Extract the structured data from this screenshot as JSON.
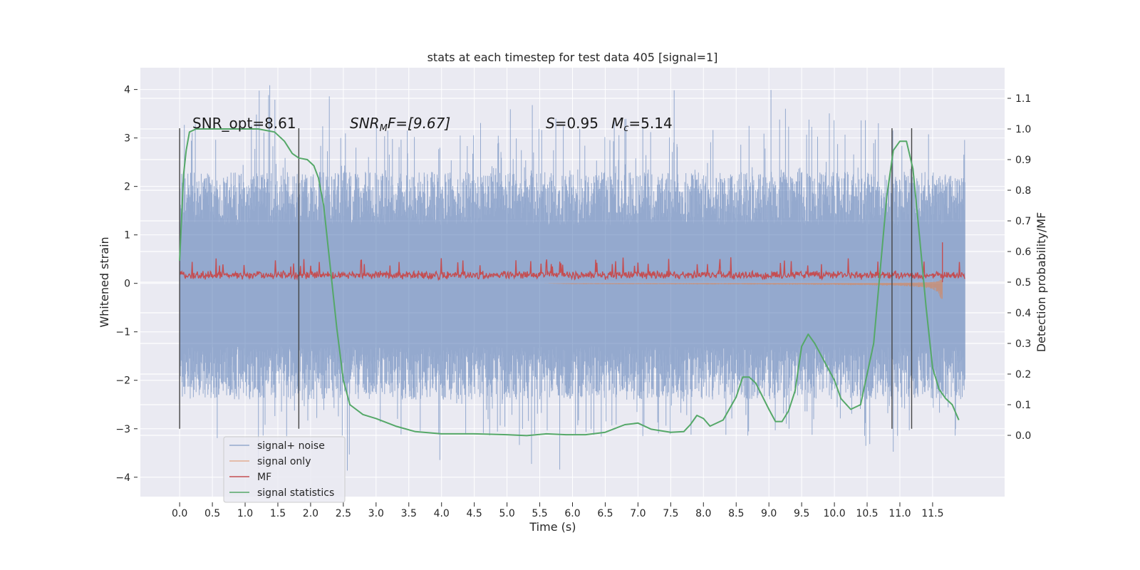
{
  "chart_data": {
    "type": "line",
    "title": "stats at each timestep for test data 405 [signal=1]",
    "xlabel": "Time (s)",
    "ylabel": "Whitened strain",
    "ylabel_right": "Detection probability/MF",
    "xlim": [
      -0.6,
      12.6
    ],
    "ylim": [
      -4.4,
      4.45
    ],
    "ylim_right": [
      -0.2,
      1.2
    ],
    "x_ticks": [
      0.0,
      0.5,
      1.0,
      1.5,
      2.0,
      2.5,
      3.0,
      3.5,
      4.0,
      4.5,
      5.0,
      5.5,
      6.0,
      6.5,
      7.0,
      7.5,
      8.0,
      8.5,
      9.0,
      9.5,
      10.0,
      10.5,
      11.0,
      11.5
    ],
    "x_tick_labels": [
      "0.0",
      "0.5",
      "1.0",
      "1.5",
      "2.0",
      "2.5",
      "3.0",
      "3.5",
      "4.0",
      "4.5",
      "5.0",
      "5.5",
      "6.0",
      "6.5",
      "7.0",
      "7.5",
      "8.0",
      "8.5",
      "9.0",
      "9.5",
      "10.0",
      "10.5",
      "11.0",
      "11.5"
    ],
    "y_ticks": [
      -4,
      -3,
      -2,
      -1,
      0,
      1,
      2,
      3,
      4
    ],
    "y_tick_labels": [
      "−4",
      "−3",
      "−2",
      "−1",
      "0",
      "1",
      "2",
      "3",
      "4"
    ],
    "y_ticks_right": [
      0.0,
      0.1,
      0.2,
      0.3,
      0.4,
      0.5,
      0.6,
      0.7,
      0.8,
      0.9,
      1.0,
      1.1
    ],
    "y_tick_labels_right": [
      "0.0",
      "0.1",
      "0.2",
      "0.3",
      "0.4",
      "0.5",
      "0.6",
      "0.7",
      "0.8",
      "0.9",
      "1.0",
      "1.1"
    ],
    "grid": true,
    "legend_position": "lower-left",
    "annotations": {
      "snr_opt": "SNR_opt=8.61",
      "snr_mf_label": "SNR",
      "snr_mf_sub": "M",
      "snr_mf_rest": "F=[9.67]",
      "s_label": "S",
      "s_value": "=0.95",
      "mc_label": "M",
      "mc_sub": "c",
      "mc_value": "=5.14"
    },
    "vertical_lines": [
      0.0,
      1.82,
      10.88,
      11.18
    ],
    "vertical_line_range": [
      -3.0,
      3.2
    ],
    "series": [
      {
        "name": "signal+ noise",
        "color": "#4c72b0",
        "style": "noise",
        "x_range": [
          0.0,
          12.0
        ],
        "envelope_inner": 1.35,
        "envelope_outer": 2.2,
        "max_peak": 4.1,
        "min_peak": -3.9
      },
      {
        "name": "signal only",
        "color": "#dd8452",
        "style": "chirp",
        "x_range": [
          0.0,
          11.65
        ],
        "max_amplitude": 0.65
      },
      {
        "name": "MF",
        "color": "#c44e52",
        "style": "mf",
        "x_range": [
          0.0,
          12.0
        ],
        "baseline": 0.5,
        "spike_x": 11.65,
        "spike_value": 0.63
      },
      {
        "name": "signal statistics",
        "color": "#55a868",
        "style": "line",
        "axis": "right",
        "x": [
          0.0,
          0.06,
          0.1,
          0.15,
          0.25,
          0.4,
          0.6,
          0.8,
          1.0,
          1.2,
          1.45,
          1.6,
          1.72,
          1.82,
          1.95,
          2.05,
          2.12,
          2.2,
          2.3,
          2.4,
          2.5,
          2.6,
          2.8,
          3.0,
          3.3,
          3.6,
          4.0,
          4.5,
          5.0,
          5.3,
          5.6,
          5.9,
          6.2,
          6.5,
          6.8,
          7.0,
          7.2,
          7.5,
          7.7,
          7.8,
          7.9,
          8.0,
          8.1,
          8.3,
          8.5,
          8.6,
          8.7,
          8.8,
          9.0,
          9.1,
          9.2,
          9.3,
          9.4,
          9.5,
          9.6,
          9.7,
          9.8,
          10.0,
          10.1,
          10.25,
          10.4,
          10.6,
          10.8,
          10.9,
          11.0,
          11.1,
          11.2,
          11.3,
          11.4,
          11.5,
          11.6,
          11.7,
          11.8,
          11.9
        ],
        "y": [
          0.57,
          0.85,
          0.93,
          0.99,
          1.0,
          1.0,
          1.0,
          1.0,
          1.0,
          1.0,
          0.99,
          0.96,
          0.92,
          0.905,
          0.9,
          0.88,
          0.84,
          0.75,
          0.55,
          0.35,
          0.18,
          0.1,
          0.068,
          0.055,
          0.03,
          0.012,
          0.005,
          0.005,
          0.002,
          -0.001,
          0.005,
          0.002,
          0.002,
          0.01,
          0.035,
          0.04,
          0.02,
          0.01,
          0.012,
          0.035,
          0.065,
          0.055,
          0.03,
          0.05,
          0.125,
          0.19,
          0.19,
          0.17,
          0.085,
          0.045,
          0.045,
          0.08,
          0.145,
          0.29,
          0.33,
          0.3,
          0.26,
          0.18,
          0.12,
          0.085,
          0.1,
          0.3,
          0.78,
          0.93,
          0.96,
          0.96,
          0.87,
          0.65,
          0.42,
          0.22,
          0.15,
          0.12,
          0.1,
          0.05
        ]
      }
    ]
  }
}
